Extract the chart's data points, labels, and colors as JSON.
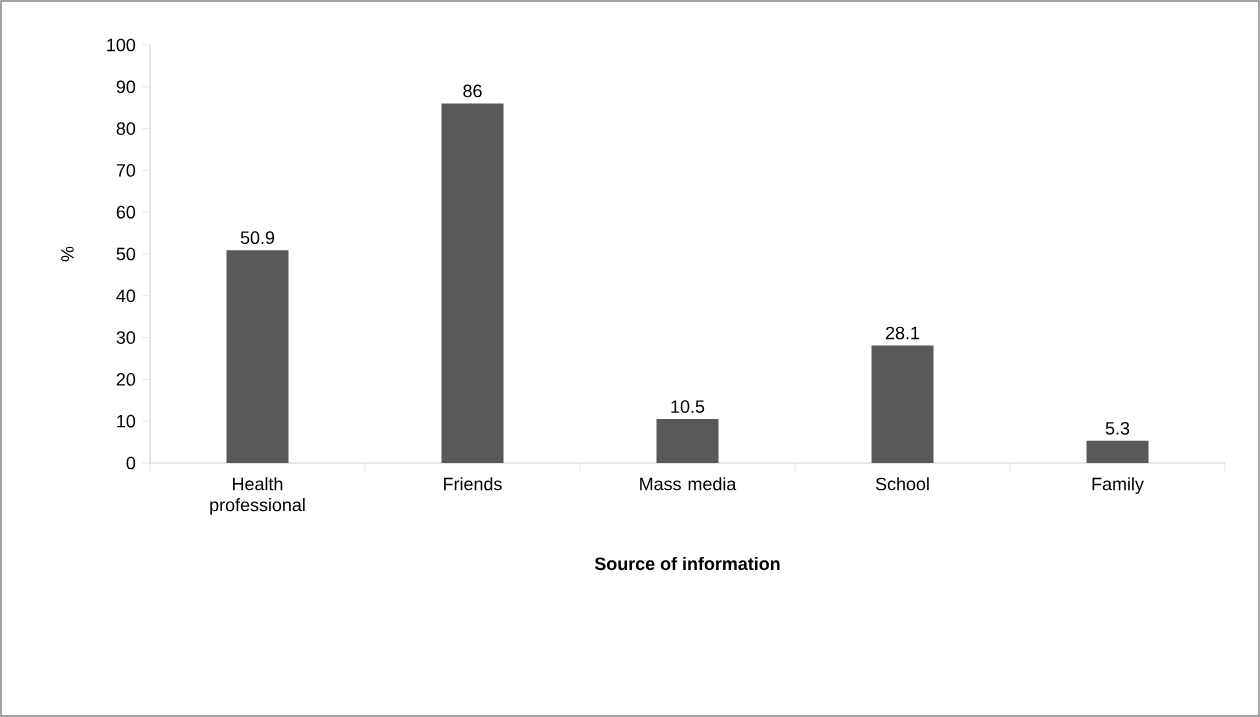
{
  "chart_data": {
    "type": "bar",
    "xlabel": "Source of information",
    "ylabel": "%",
    "categories": [
      "Health professional",
      "Friends",
      "Mass media",
      "School",
      "Family"
    ],
    "values": [
      50.9,
      86,
      10.5,
      28.1,
      5.3
    ],
    "color": "#595959",
    "ylim": [
      0,
      100
    ],
    "yticks": [
      0,
      10,
      20,
      30,
      40,
      50,
      60,
      70,
      80,
      90,
      100
    ],
    "data_labels": true,
    "grid": false
  }
}
